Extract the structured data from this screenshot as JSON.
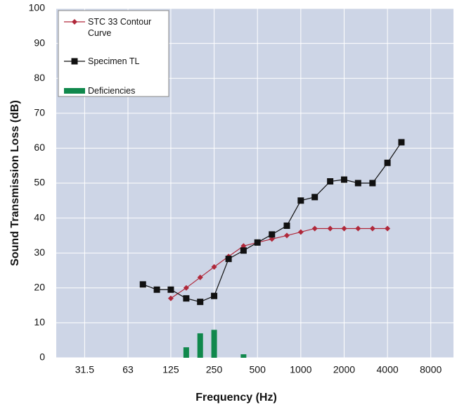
{
  "chart_data": {
    "type": "line",
    "x_label": "Frequency (Hz)",
    "y_label": "Sound Transmission Loss (dB)",
    "xscale": "log",
    "xlim": [
      20,
      11500
    ],
    "ylim": [
      0,
      100
    ],
    "xticks": [
      31.5,
      63,
      125,
      250,
      500,
      1000,
      2000,
      4000,
      8000
    ],
    "yticks": [
      0,
      10,
      20,
      30,
      40,
      50,
      60,
      70,
      80,
      90,
      100
    ],
    "grid": true,
    "legend": "upper left",
    "background": "#cdd5e6",
    "series": [
      {
        "name": "STC 33 Contour Curve",
        "type": "line",
        "marker": "diamond",
        "color": "#b0283a",
        "x": [
          125,
          160,
          200,
          250,
          315,
          400,
          500,
          630,
          800,
          1000,
          1250,
          1600,
          2000,
          2500,
          3150,
          4000
        ],
        "values": [
          17,
          20,
          23,
          26,
          29,
          32,
          33,
          34,
          35,
          36,
          37,
          37,
          37,
          37,
          37,
          37
        ]
      },
      {
        "name": "Specimen TL",
        "type": "line",
        "marker": "square",
        "color": "#111111",
        "x": [
          80,
          100,
          125,
          160,
          200,
          250,
          315,
          400,
          500,
          630,
          800,
          1000,
          1250,
          1600,
          2000,
          2500,
          3150,
          4000,
          5000
        ],
        "values": [
          21,
          19.5,
          19.5,
          17,
          16,
          17.7,
          28.3,
          30.7,
          33,
          35.3,
          37.8,
          45,
          46,
          50.5,
          51,
          50,
          50,
          55.8,
          61.7
        ]
      },
      {
        "name": "Deficiencies",
        "type": "bar",
        "color": "#10884c",
        "x": [
          160,
          200,
          250,
          400
        ],
        "values": [
          3,
          7,
          8,
          1
        ]
      }
    ]
  }
}
